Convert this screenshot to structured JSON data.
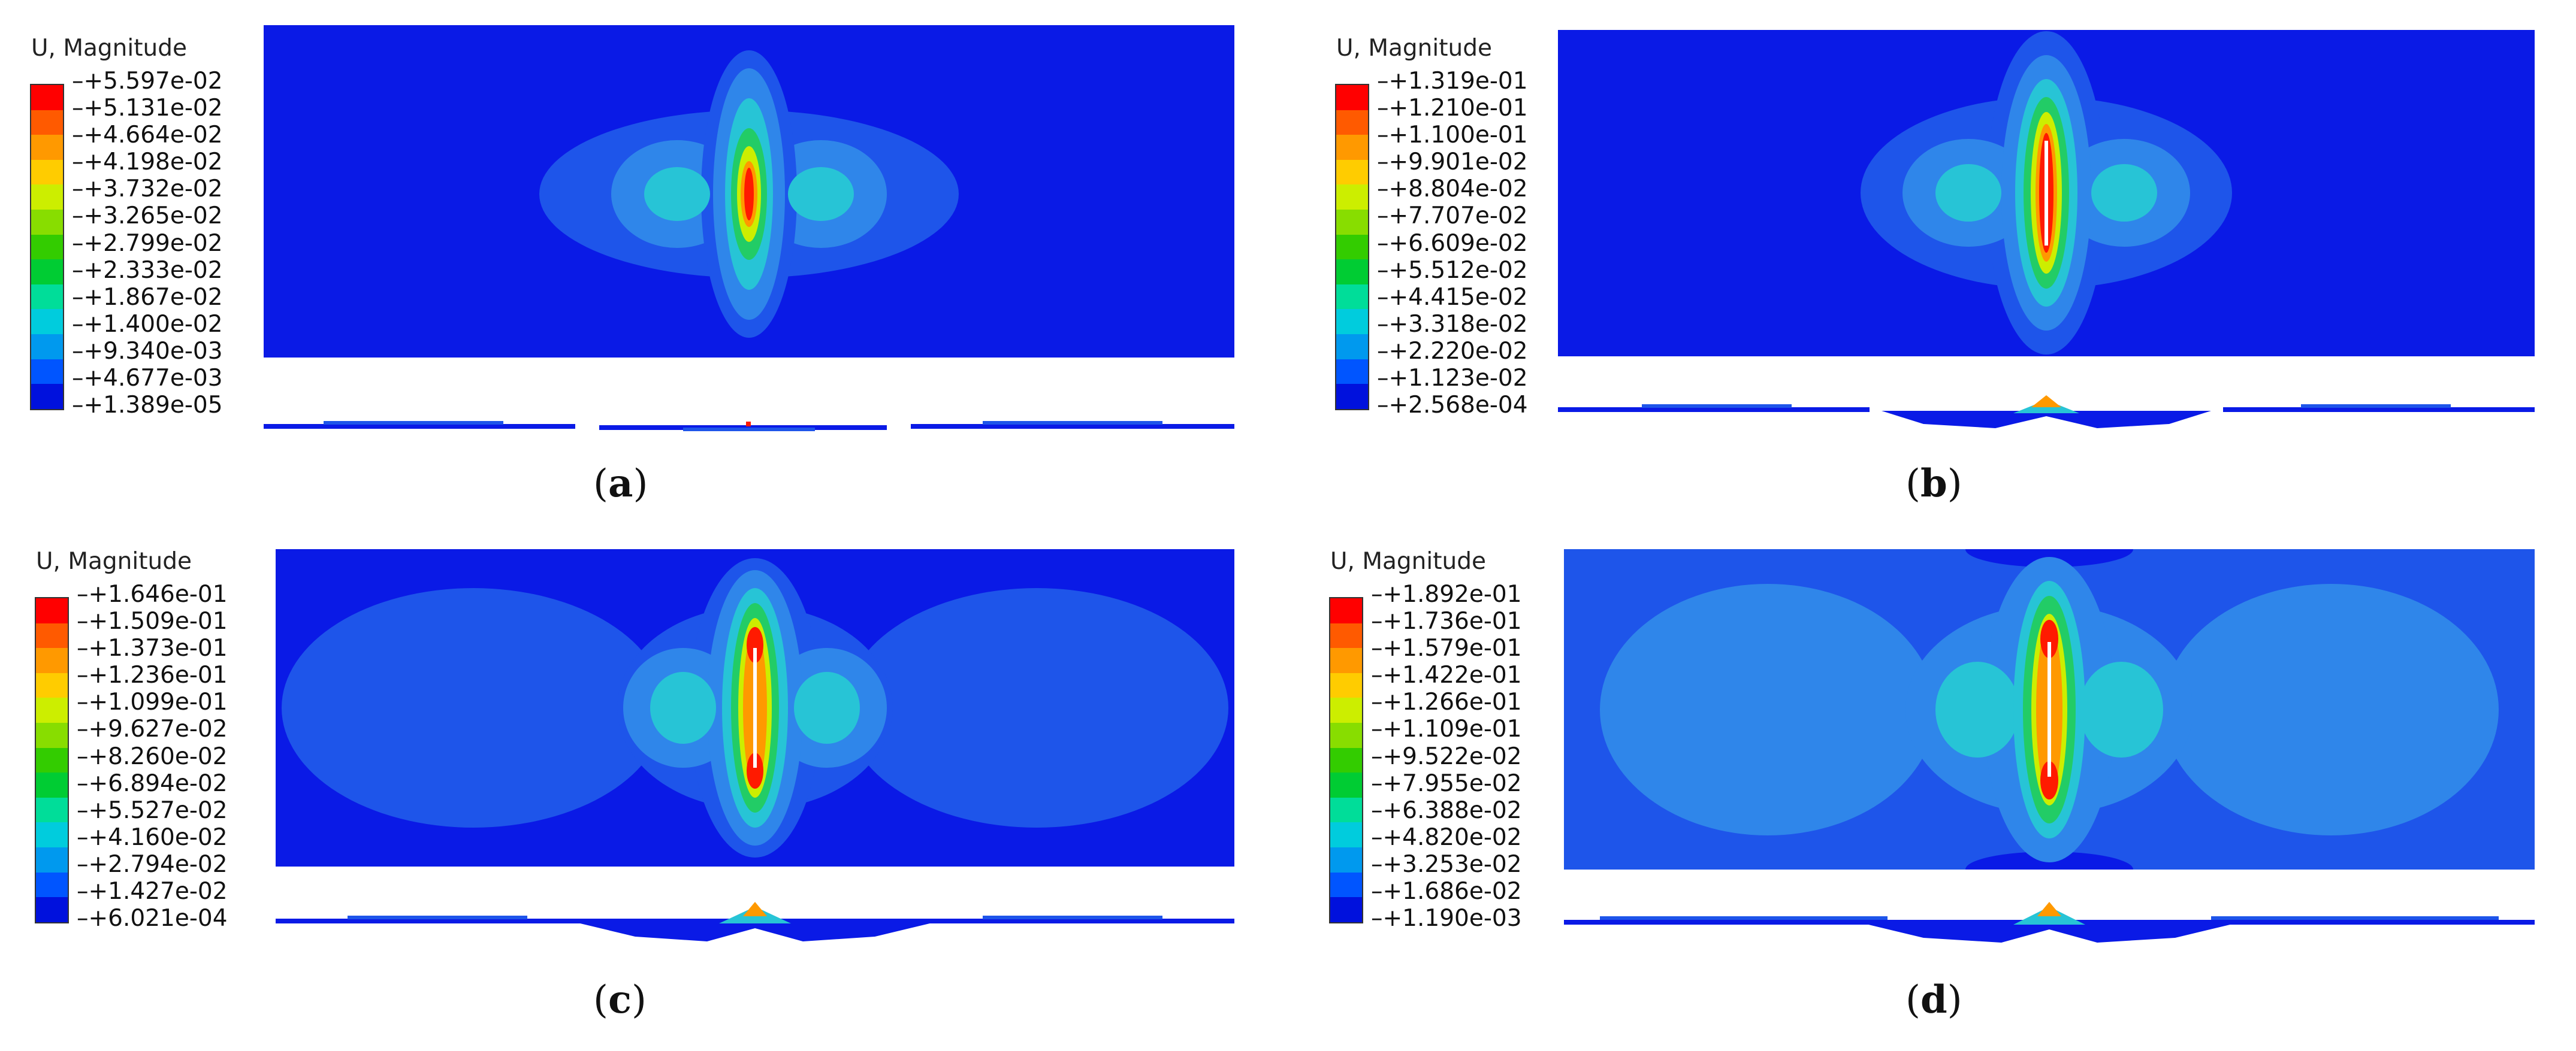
{
  "panels": [
    {
      "caption_prefix": "(",
      "letter": "a",
      "caption_suffix": ")",
      "legend_title": "U, Magnitude",
      "legend_values": [
        "+5.597e-02",
        "+5.131e-02",
        "+4.664e-02",
        "+4.198e-02",
        "+3.732e-02",
        "+3.265e-02",
        "+2.799e-02",
        "+2.333e-02",
        "+1.867e-02",
        "+1.400e-02",
        "+9.340e-03",
        "+4.677e-03",
        "+1.389e-05"
      ]
    },
    {
      "caption_prefix": "(",
      "letter": "b",
      "caption_suffix": ")",
      "legend_title": "U, Magnitude",
      "legend_values": [
        "+1.319e-01",
        "+1.210e-01",
        "+1.100e-01",
        "+9.901e-02",
        "+8.804e-02",
        "+7.707e-02",
        "+6.609e-02",
        "+5.512e-02",
        "+4.415e-02",
        "+3.318e-02",
        "+2.220e-02",
        "+1.123e-02",
        "+2.568e-04"
      ]
    },
    {
      "caption_prefix": "(",
      "letter": "c",
      "caption_suffix": ")",
      "legend_title": "U, Magnitude",
      "legend_values": [
        "+1.646e-01",
        "+1.509e-01",
        "+1.373e-01",
        "+1.236e-01",
        "+1.099e-01",
        "+9.627e-02",
        "+8.260e-02",
        "+6.894e-02",
        "+5.527e-02",
        "+4.160e-02",
        "+2.794e-02",
        "+1.427e-02",
        "+6.021e-04"
      ]
    },
    {
      "caption_prefix": "(",
      "letter": "d",
      "caption_suffix": ")",
      "legend_title": "U, Magnitude",
      "legend_values": [
        "+1.892e-01",
        "+1.736e-01",
        "+1.579e-01",
        "+1.422e-01",
        "+1.266e-01",
        "+1.109e-01",
        "+9.522e-02",
        "+7.955e-02",
        "+6.388e-02",
        "+4.820e-02",
        "+3.253e-02",
        "+1.686e-02",
        "+1.190e-03"
      ]
    }
  ],
  "colors": {
    "scale": [
      "#ff0000",
      "#ff5a00",
      "#ff9900",
      "#ffcc00",
      "#ccee00",
      "#88dd00",
      "#33cc00",
      "#00cc33",
      "#00dd99",
      "#00ccdd",
      "#0099ee",
      "#0055ff",
      "#0011dd"
    ],
    "plate_base": "#1a1aee"
  }
}
